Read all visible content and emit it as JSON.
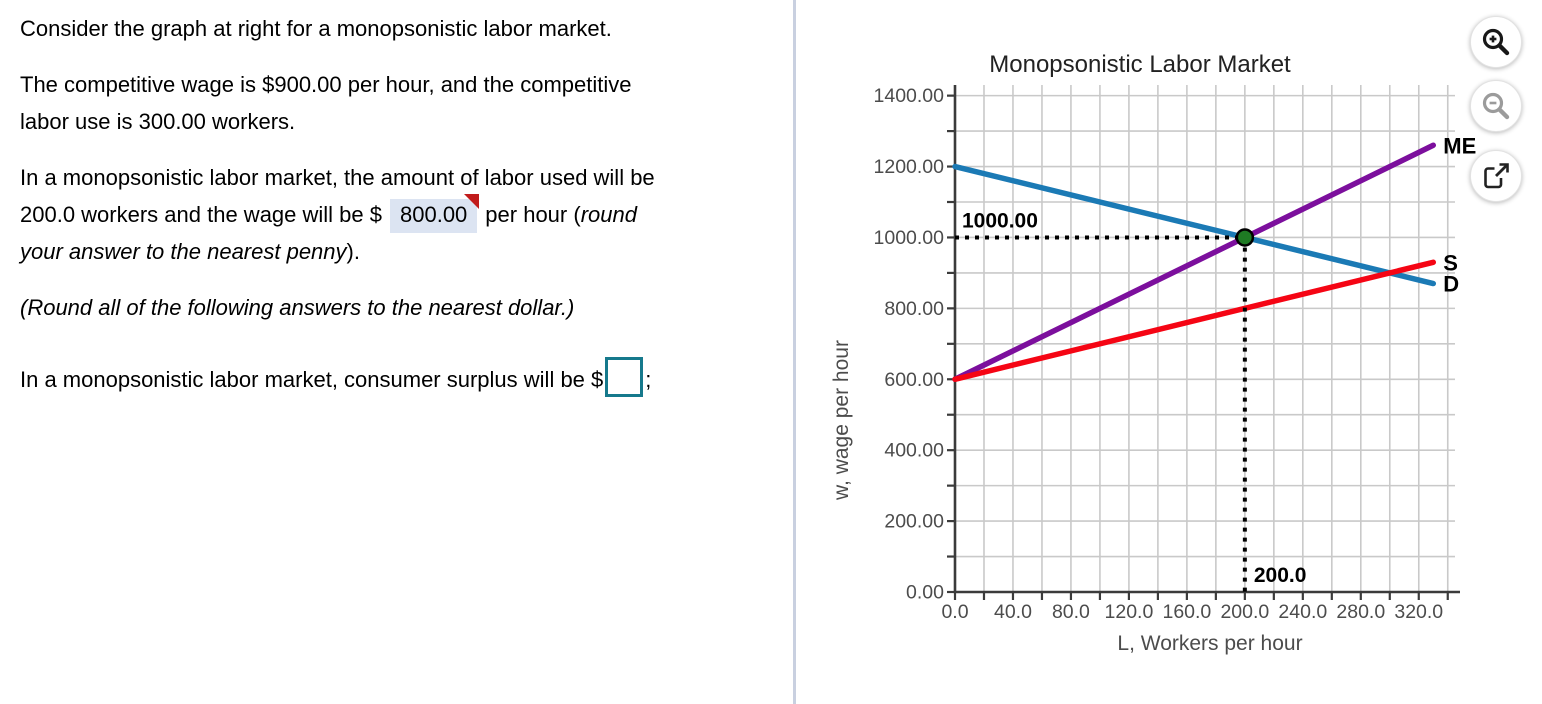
{
  "colors": {
    "input-border": "#16798c",
    "answer-highlight-bg": "#dce4f2",
    "answer-flag": "#c11b1b",
    "divider": "#c9d0e0"
  },
  "paragraphs": {
    "p1": "Consider the graph at right for a monopsonistic labor market.",
    "p2_line1": "The competitive wage is $900.00 per hour, and the competitive",
    "p2_line2": "labor use is 300.00 workers.",
    "p3_line1": "In a monopsonistic labor market, the amount of labor used will be",
    "p3_line2_pre": "200.0 workers and the wage will be $",
    "p3_answer": "800.00",
    "p3_line2_post": "per hour (",
    "p3_line2_italic": "round",
    "p3_line3_italic": "your answer to the nearest penny",
    "p3_line3_end": ").",
    "p4": "(Round all of the following answers to the nearest dollar.)",
    "p5_pre": "In a monopsonistic labor market, consumer surplus will be $",
    "p5_post": ";"
  },
  "toolbar": {
    "buttons": [
      {
        "icon": "zoom-in-icon"
      },
      {
        "icon": "zoom-out-icon"
      },
      {
        "icon": "open-in-new-icon"
      }
    ]
  },
  "chart_data": {
    "type": "line",
    "title": "Monopsonistic Labor Market",
    "xlabel": "L, Workers per hour",
    "ylabel": "w, wage per hour",
    "xlim": [
      0,
      345
    ],
    "ylim": [
      0,
      1430
    ],
    "grid": true,
    "x_minor_step": 20,
    "y_minor_step": 100,
    "x_ticks_labeled": [
      0,
      40,
      80,
      120,
      160,
      200,
      240,
      280,
      320
    ],
    "x_tick_decimals": 1,
    "y_ticks_labeled": [
      0,
      200,
      400,
      600,
      800,
      1000,
      1200,
      1400
    ],
    "y_tick_decimals": 2,
    "series": [
      {
        "name": "D",
        "color": "#1b7ab5",
        "x": [
          0,
          330
        ],
        "y": [
          1200,
          870
        ]
      },
      {
        "name": "ME",
        "color": "#7c0f9d",
        "x": [
          0,
          330
        ],
        "y": [
          600,
          1260
        ]
      },
      {
        "name": "S",
        "color": "#f50514",
        "x": [
          0,
          330
        ],
        "y": [
          600,
          930
        ]
      }
    ],
    "equilibrium_point": {
      "x": 200,
      "y": 1000,
      "x_label": "200.0",
      "y_label": "1000.00",
      "dot_color": "#1e7a23"
    },
    "legend_position": "line-end-labels"
  }
}
